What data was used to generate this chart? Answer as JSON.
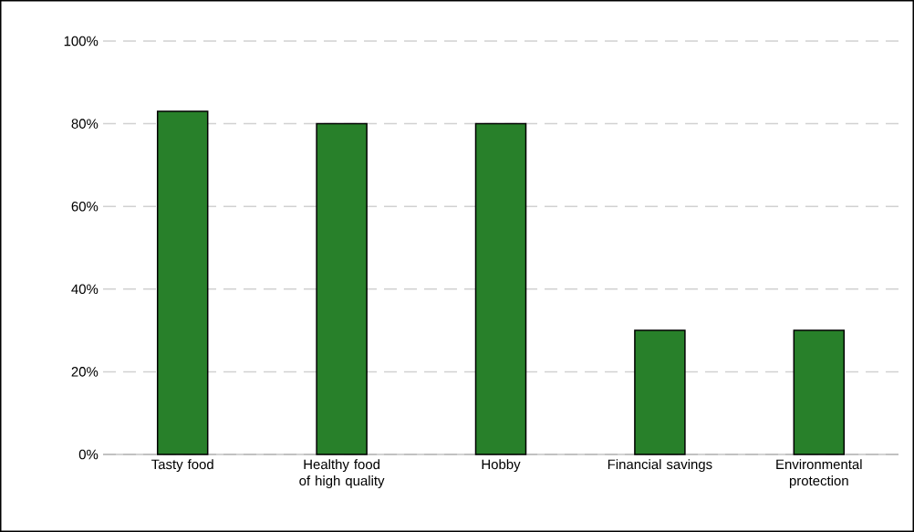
{
  "chart_data": {
    "type": "bar",
    "categories": [
      "Tasty food",
      "Healthy food of high quality",
      "Hobby",
      "Financial savings",
      "Environmental protection"
    ],
    "values": [
      83,
      80,
      80,
      30,
      30
    ],
    "color": "#28802a",
    "ylim": [
      0,
      100
    ],
    "yticks": [
      {
        "value": 0,
        "label": "0%"
      },
      {
        "value": 20,
        "label": "20%"
      },
      {
        "value": 40,
        "label": "40%"
      },
      {
        "value": 60,
        "label": "60%"
      },
      {
        "value": 80,
        "label": "80%"
      },
      {
        "value": 100,
        "label": "100%"
      }
    ],
    "grid": "y"
  }
}
